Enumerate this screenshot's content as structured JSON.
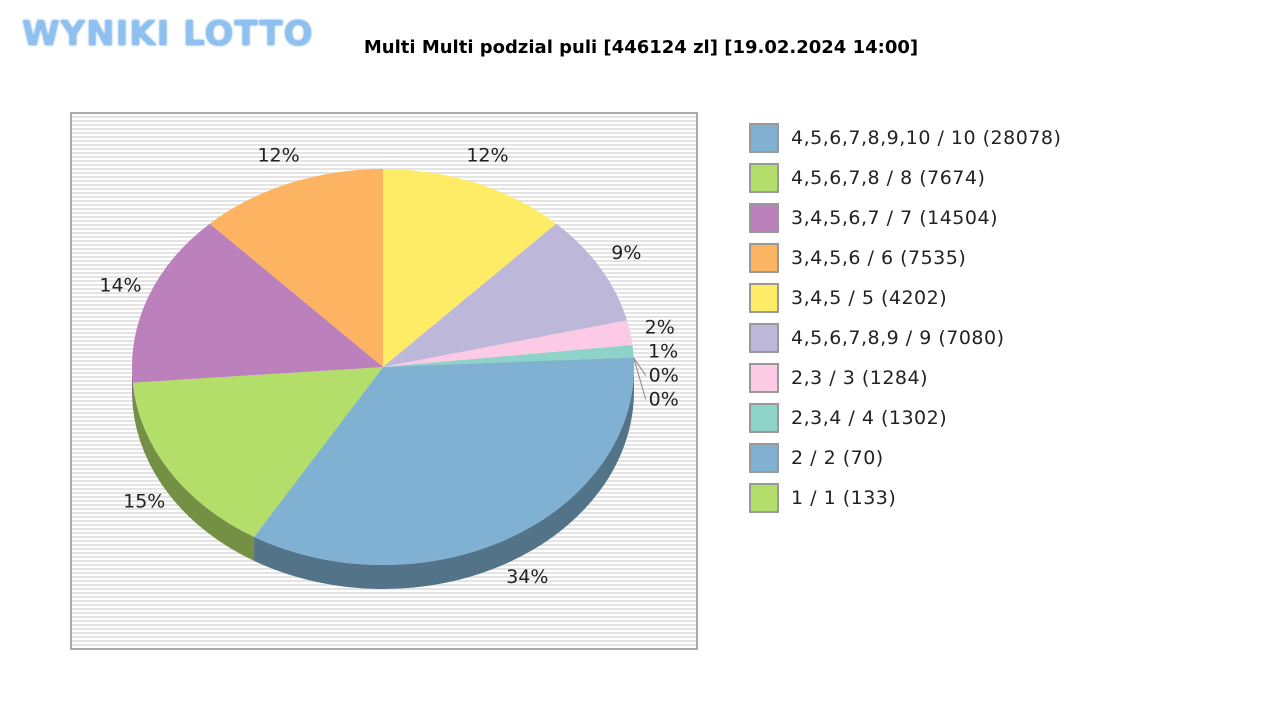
{
  "logo": "WYNIKI LOTTO",
  "chart_data": {
    "type": "pie",
    "title": "Multi Multi podzial puli [446124 zl] [19.02.2024 14:00]",
    "slices": [
      {
        "label": "3,4,5 / 5 (4202)",
        "percent": 12,
        "color": "#ffec66"
      },
      {
        "label": "4,5,6,7,8,9 / 9 (7080)",
        "percent": 9,
        "color": "#bdb7da"
      },
      {
        "label": "2,3 / 3 (1284)",
        "percent": 2,
        "color": "#fccae4"
      },
      {
        "label": "2,3,4 / 4 (1302)",
        "percent": 1,
        "color": "#8dd3c7"
      },
      {
        "label": "2 / 2 (70)",
        "percent": 0,
        "color": "#80b1d3"
      },
      {
        "label": "1 / 1 (133)",
        "percent": 0,
        "color": "#b3de69"
      },
      {
        "label": "4,5,6,7,8,9,10 / 10 (28078)",
        "percent": 34,
        "color": "#80b1d3"
      },
      {
        "label": "4,5,6,7,8 / 8 (7674)",
        "percent": 15,
        "color": "#b3de69"
      },
      {
        "label": "3,4,5,6,7 / 7 (14504)",
        "percent": 14,
        "color": "#bc80bd"
      },
      {
        "label": "3,4,5,6 / 6 (7535)",
        "percent": 12,
        "color": "#fdb462"
      }
    ],
    "legend": [
      {
        "label": "4,5,6,7,8,9,10 / 10 (28078)",
        "color": "#80b1d3"
      },
      {
        "label": "4,5,6,7,8 / 8 (7674)",
        "color": "#b3de69"
      },
      {
        "label": "3,4,5,6,7 / 7 (14504)",
        "color": "#bc80bd"
      },
      {
        "label": "3,4,5,6 / 6 (7535)",
        "color": "#fdb462"
      },
      {
        "label": "3,4,5 / 5 (4202)",
        "color": "#ffec66"
      },
      {
        "label": "4,5,6,7,8,9 / 9 (7080)",
        "color": "#bdb7da"
      },
      {
        "label": "2,3 / 3 (1284)",
        "color": "#fccae4"
      },
      {
        "label": "2,3,4 / 4 (1302)",
        "color": "#8dd3c7"
      },
      {
        "label": "2 / 2 (70)",
        "color": "#80b1d3"
      },
      {
        "label": "1 / 1 (133)",
        "color": "#b3de69"
      }
    ],
    "legend_position": "right"
  }
}
